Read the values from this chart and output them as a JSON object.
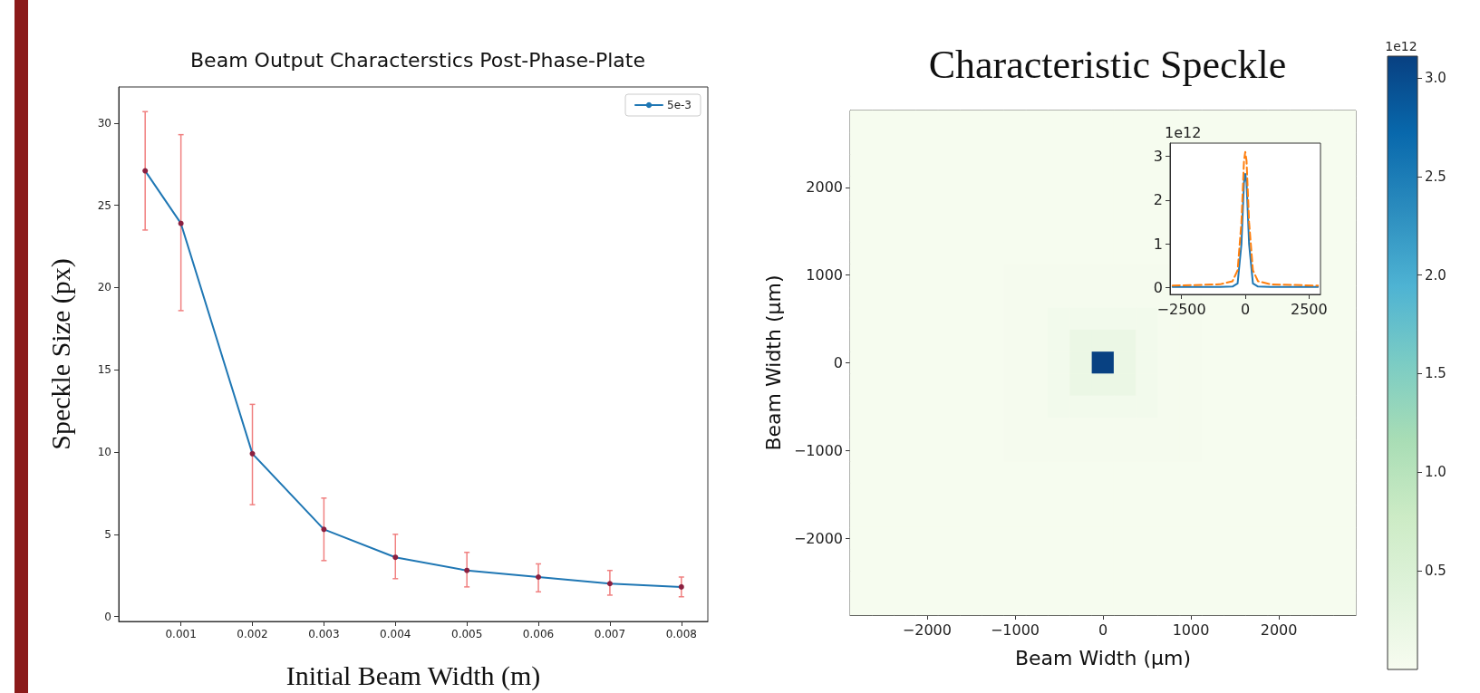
{
  "chart_data": [
    {
      "type": "line",
      "title": "Beam Output Characterstics Post-Phase-Plate",
      "xlabel": "Initial Beam Width (m)",
      "ylabel": "Speckle Size (px)",
      "x": [
        0.0005,
        0.001,
        0.002,
        0.003,
        0.004,
        0.005,
        0.006,
        0.007,
        0.008
      ],
      "series": [
        {
          "name": "5e-3",
          "color": "#1f77b4",
          "values": [
            27.1,
            23.9,
            9.9,
            5.3,
            3.6,
            2.8,
            2.4,
            2.0,
            1.8
          ],
          "errors": [
            [
              23.5,
              30.7
            ],
            [
              18.6,
              29.3
            ],
            [
              6.8,
              12.9
            ],
            [
              3.4,
              7.2
            ],
            [
              2.3,
              5.0
            ],
            [
              1.8,
              3.9
            ],
            [
              1.5,
              3.2
            ],
            [
              1.3,
              2.8
            ],
            [
              1.2,
              2.4
            ]
          ]
        }
      ],
      "xlim": [
        0.00013,
        0.00837
      ],
      "xticks": [
        0.001,
        0.002,
        0.003,
        0.004,
        0.005,
        0.006,
        0.007,
        0.008
      ],
      "ylim": [
        -0.3,
        32.2
      ],
      "yticks": [
        0,
        5,
        10,
        15,
        20,
        25,
        30
      ],
      "grid": false,
      "legend": "top right",
      "marker": "circle",
      "line_style": "solid"
    },
    {
      "type": "heatmap",
      "title": "Characteristic Speckle",
      "xlabel": "Beam Width (μm)",
      "ylabel": "Beam Width (μm)",
      "clabel": "1e12",
      "categories": [
        null,
        null,
        null,
        "−2000",
        null,
        null,
        null,
        "−1000",
        null,
        null,
        null,
        "0",
        null,
        null,
        null,
        "1000",
        null,
        null,
        null,
        "2000",
        null,
        null,
        null
      ],
      "y_categories": [
        null,
        null,
        null,
        "2000",
        null,
        null,
        null,
        "1000",
        null,
        null,
        null,
        "0",
        null,
        null,
        null,
        "−1000",
        null,
        null,
        null,
        "−2000",
        null,
        null,
        null
      ],
      "cells": [
        [
          0.02,
          0.02,
          0.02,
          0.02,
          0.02,
          0.02,
          0.02,
          0.02,
          0.02,
          0.02,
          0.02,
          0.02,
          0.02,
          0.02,
          0.02,
          0.02,
          0.02,
          0.02,
          0.02,
          0.02,
          0.02,
          0.02,
          0.02
        ],
        [
          0.02,
          0.02,
          0.02,
          0.02,
          0.02,
          0.02,
          0.02,
          0.02,
          0.02,
          0.02,
          0.02,
          0.02,
          0.02,
          0.02,
          0.02,
          0.02,
          0.02,
          0.02,
          0.02,
          0.02,
          0.02,
          0.02,
          0.02
        ],
        [
          0.02,
          0.02,
          0.02,
          0.02,
          0.02,
          0.02,
          0.02,
          0.02,
          0.02,
          0.02,
          0.02,
          0.02,
          0.02,
          0.02,
          0.02,
          0.02,
          0.02,
          0.02,
          0.02,
          0.02,
          0.02,
          0.02,
          0.02
        ],
        [
          0.02,
          0.02,
          0.02,
          0.02,
          0.02,
          0.02,
          0.02,
          0.02,
          0.02,
          0.02,
          0.02,
          0.02,
          0.02,
          0.02,
          0.02,
          0.02,
          0.02,
          0.02,
          0.02,
          0.02,
          0.02,
          0.02,
          0.02
        ],
        [
          0.02,
          0.02,
          0.02,
          0.02,
          0.02,
          0.02,
          0.02,
          0.02,
          0.02,
          0.02,
          0.02,
          0.02,
          0.02,
          0.02,
          0.02,
          0.02,
          0.02,
          0.02,
          0.02,
          0.02,
          0.02,
          0.02,
          0.02
        ],
        [
          0.02,
          0.02,
          0.02,
          0.02,
          0.02,
          0.02,
          0.02,
          0.02,
          0.02,
          0.02,
          0.02,
          0.02,
          0.02,
          0.02,
          0.02,
          0.02,
          0.02,
          0.02,
          0.02,
          0.02,
          0.02,
          0.02,
          0.02
        ],
        [
          0.02,
          0.02,
          0.02,
          0.02,
          0.02,
          0.02,
          0.02,
          0.02,
          0.02,
          0.02,
          0.02,
          0.02,
          0.02,
          0.02,
          0.02,
          0.02,
          0.02,
          0.02,
          0.02,
          0.02,
          0.02,
          0.02,
          0.02
        ],
        [
          0.02,
          0.02,
          0.02,
          0.02,
          0.02,
          0.02,
          0.02,
          0.04,
          0.04,
          0.04,
          0.04,
          0.04,
          0.04,
          0.04,
          0.04,
          0.04,
          0.02,
          0.02,
          0.02,
          0.02,
          0.02,
          0.02,
          0.02
        ],
        [
          0.02,
          0.02,
          0.02,
          0.02,
          0.02,
          0.02,
          0.02,
          0.04,
          0.04,
          0.04,
          0.04,
          0.04,
          0.04,
          0.04,
          0.04,
          0.04,
          0.02,
          0.02,
          0.02,
          0.02,
          0.02,
          0.02,
          0.02
        ],
        [
          0.02,
          0.02,
          0.02,
          0.02,
          0.02,
          0.02,
          0.02,
          0.04,
          0.04,
          0.08,
          0.08,
          0.08,
          0.08,
          0.08,
          0.04,
          0.04,
          0.02,
          0.02,
          0.02,
          0.02,
          0.02,
          0.02,
          0.02
        ],
        [
          0.02,
          0.02,
          0.02,
          0.02,
          0.02,
          0.02,
          0.02,
          0.04,
          0.04,
          0.08,
          0.2,
          0.2,
          0.2,
          0.08,
          0.04,
          0.04,
          0.02,
          0.02,
          0.02,
          0.02,
          0.02,
          0.02,
          0.02
        ],
        [
          0.02,
          0.02,
          0.02,
          0.02,
          0.02,
          0.02,
          0.02,
          0.04,
          0.04,
          0.08,
          0.2,
          3.1,
          0.2,
          0.08,
          0.04,
          0.04,
          0.02,
          0.02,
          0.02,
          0.02,
          0.02,
          0.02,
          0.02
        ],
        [
          0.02,
          0.02,
          0.02,
          0.02,
          0.02,
          0.02,
          0.02,
          0.04,
          0.04,
          0.08,
          0.2,
          0.2,
          0.2,
          0.08,
          0.04,
          0.04,
          0.02,
          0.02,
          0.02,
          0.02,
          0.02,
          0.02,
          0.02
        ],
        [
          0.02,
          0.02,
          0.02,
          0.02,
          0.02,
          0.02,
          0.02,
          0.04,
          0.04,
          0.08,
          0.08,
          0.08,
          0.08,
          0.08,
          0.04,
          0.04,
          0.02,
          0.02,
          0.02,
          0.02,
          0.02,
          0.02,
          0.02
        ],
        [
          0.02,
          0.02,
          0.02,
          0.02,
          0.02,
          0.02,
          0.02,
          0.04,
          0.04,
          0.04,
          0.04,
          0.04,
          0.04,
          0.04,
          0.04,
          0.04,
          0.02,
          0.02,
          0.02,
          0.02,
          0.02,
          0.02,
          0.02
        ],
        [
          0.02,
          0.02,
          0.02,
          0.02,
          0.02,
          0.02,
          0.02,
          0.04,
          0.04,
          0.04,
          0.04,
          0.04,
          0.04,
          0.04,
          0.04,
          0.04,
          0.02,
          0.02,
          0.02,
          0.02,
          0.02,
          0.02,
          0.02
        ],
        [
          0.02,
          0.02,
          0.02,
          0.02,
          0.02,
          0.02,
          0.02,
          0.02,
          0.02,
          0.02,
          0.02,
          0.02,
          0.02,
          0.02,
          0.02,
          0.02,
          0.02,
          0.02,
          0.02,
          0.02,
          0.02,
          0.02,
          0.02
        ],
        [
          0.02,
          0.02,
          0.02,
          0.02,
          0.02,
          0.02,
          0.02,
          0.02,
          0.02,
          0.02,
          0.02,
          0.02,
          0.02,
          0.02,
          0.02,
          0.02,
          0.02,
          0.02,
          0.02,
          0.02,
          0.02,
          0.02,
          0.02
        ],
        [
          0.02,
          0.02,
          0.02,
          0.02,
          0.02,
          0.02,
          0.02,
          0.02,
          0.02,
          0.02,
          0.02,
          0.02,
          0.02,
          0.02,
          0.02,
          0.02,
          0.02,
          0.02,
          0.02,
          0.02,
          0.02,
          0.02,
          0.02
        ],
        [
          0.02,
          0.02,
          0.02,
          0.02,
          0.02,
          0.02,
          0.02,
          0.02,
          0.02,
          0.02,
          0.02,
          0.02,
          0.02,
          0.02,
          0.02,
          0.02,
          0.02,
          0.02,
          0.02,
          0.02,
          0.02,
          0.02,
          0.02
        ],
        [
          0.02,
          0.02,
          0.02,
          0.02,
          0.02,
          0.02,
          0.02,
          0.02,
          0.02,
          0.02,
          0.02,
          0.02,
          0.02,
          0.02,
          0.02,
          0.02,
          0.02,
          0.02,
          0.02,
          0.02,
          0.02,
          0.02,
          0.02
        ],
        [
          0.02,
          0.02,
          0.02,
          0.02,
          0.02,
          0.02,
          0.02,
          0.02,
          0.02,
          0.02,
          0.02,
          0.02,
          0.02,
          0.02,
          0.02,
          0.02,
          0.02,
          0.02,
          0.02,
          0.02,
          0.02,
          0.02,
          0.02
        ],
        [
          0.02,
          0.02,
          0.02,
          0.02,
          0.02,
          0.02,
          0.02,
          0.02,
          0.02,
          0.02,
          0.02,
          0.02,
          0.02,
          0.02,
          0.02,
          0.02,
          0.02,
          0.02,
          0.02,
          0.02,
          0.02,
          0.02,
          0.02
        ]
      ],
      "clim": [
        0,
        3.11
      ],
      "cticks": [
        0.5,
        {
          "value": 1,
          "label": "1.0"
        },
        1.5,
        {
          "value": 2,
          "label": "2.0"
        },
        2.5,
        {
          "value": 3,
          "label": "3.0"
        }
      ]
    },
    {
      "type": "line",
      "ylabel": "1e12",
      "x": [
        -2850,
        -1000,
        -500,
        -300,
        -150,
        -50,
        0,
        50,
        150,
        300,
        500,
        1000,
        2850
      ],
      "series": [
        {
          "color": "#1f77b4",
          "line_style": "solid",
          "values": [
            0.02,
            0.02,
            0.03,
            0.1,
            1.0,
            2.4,
            2.6,
            2.4,
            1.0,
            0.1,
            0.03,
            0.02,
            0.02
          ]
        },
        {
          "color": "#ff7f0e",
          "line_style": "dashed",
          "values": [
            0.05,
            0.08,
            0.15,
            0.4,
            1.5,
            2.9,
            3.1,
            2.9,
            1.5,
            0.4,
            0.15,
            0.08,
            0.05
          ]
        }
      ],
      "xlim": [
        -2950,
        2950
      ],
      "xticks": [
        {
          "value": -2500,
          "label": "−2500"
        },
        0,
        2500
      ],
      "ylim": [
        -0.15,
        3.3
      ],
      "yticks": [
        0,
        1,
        2,
        3
      ],
      "grid": false
    }
  ]
}
